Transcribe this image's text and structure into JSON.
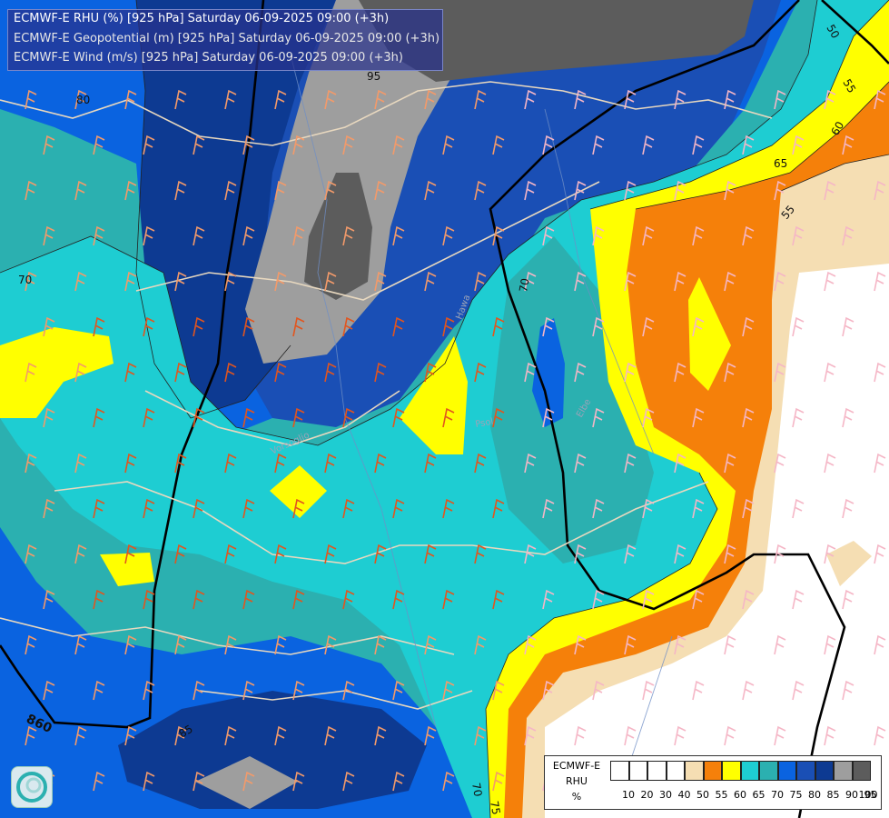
{
  "title_lines": [
    "ECMWF-E RHU (%) [925 hPa] Saturday 06-09-2025 09:00 (+3h)",
    "ECMWF-E Geopotential (m) [925 hPa] Saturday 06-09-2025 09:00 (+3h)",
    "ECMWF-E Wind (m/s) [925 hPa] Saturday 06-09-2025 09:00 (+3h)"
  ],
  "legend": {
    "title_lines": [
      "ECMWF-E",
      "RHU",
      "%"
    ],
    "ticks": [
      "10",
      "20",
      "30",
      "40",
      "50",
      "55",
      "60",
      "65",
      "70",
      "75",
      "80",
      "85",
      "90",
      "95",
      "100"
    ],
    "colors": [
      "#ffffff",
      "#ffffff",
      "#ffffff",
      "#ffffff",
      "#f5deb3",
      "#f5800a",
      "#ffff00",
      "#1ecdd2",
      "#2bb0b0",
      "#0a63e0",
      "#1a4fb5",
      "#0d3a92",
      "#9e9e9e",
      "#5c5c5c"
    ]
  },
  "contour_labels": [
    {
      "text": "80"
    },
    {
      "text": "70"
    },
    {
      "text": "95"
    },
    {
      "text": "50"
    },
    {
      "text": "55"
    },
    {
      "text": "60"
    },
    {
      "text": "65"
    },
    {
      "text": "55"
    },
    {
      "text": "70"
    },
    {
      "text": "860"
    },
    {
      "text": "85"
    },
    {
      "text": "70"
    },
    {
      "text": "75"
    }
  ],
  "place_labels": [
    "Hawa",
    "Psol",
    "Elbe",
    "Vorsoglio"
  ],
  "logo_icon": "weather-logo-icon"
}
